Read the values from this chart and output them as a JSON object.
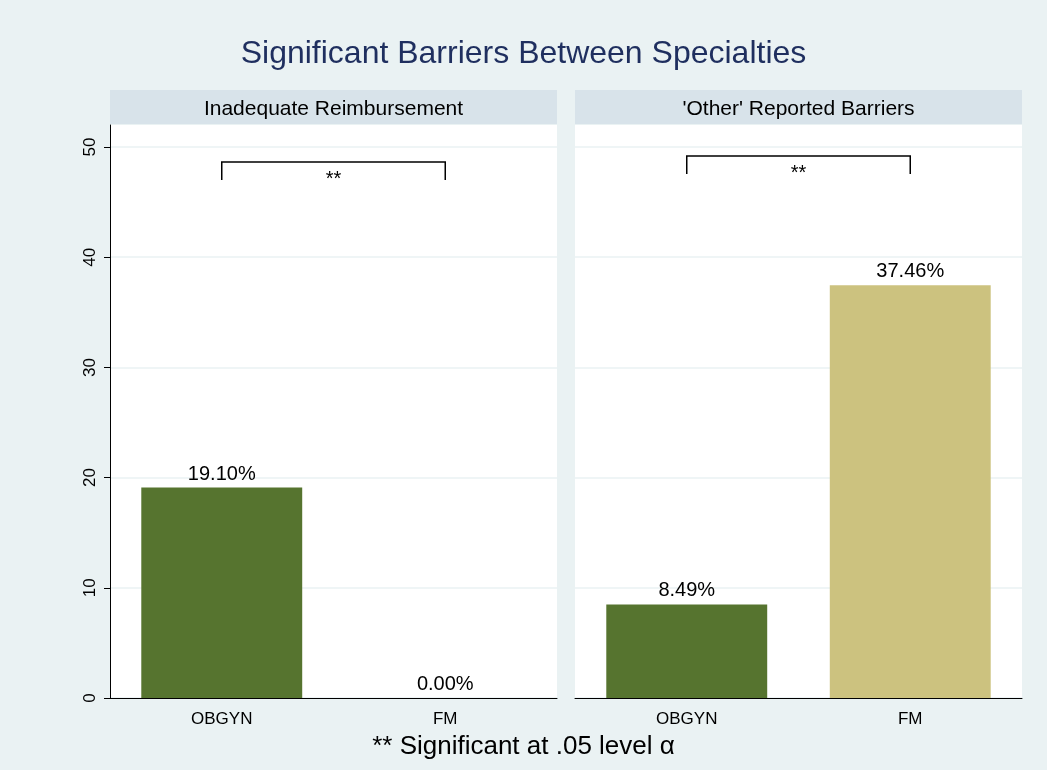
{
  "chart_data": [
    {
      "type": "bar",
      "title": "Significant Barriers Between Specialties",
      "subtitle": "Inadequate Reimbursement",
      "categories": [
        "OBGYN",
        "FM"
      ],
      "values": [
        19.1,
        0
      ],
      "colors": [
        "#56742f",
        "#ccc27f"
      ],
      "value_labels": [
        "19.10%",
        "0.00%"
      ],
      "ylim": [
        0,
        52
      ],
      "yticks": [
        0,
        10,
        20,
        30,
        40,
        50
      ],
      "grid": "y",
      "annotations": [
        "**",
        "** Significant at .05 level α"
      ]
    },
    {
      "type": "bar",
      "subtitle": "'Other' Reported Barriers",
      "categories": [
        "OBGYN",
        "FM"
      ],
      "values": [
        8.49,
        37.46
      ],
      "colors": [
        "#56742f",
        "#ccc27f"
      ],
      "value_labels": [
        "8.49%",
        "37.46%"
      ],
      "ylim": [
        0,
        52
      ],
      "yticks": [
        0,
        10,
        20,
        30,
        40,
        50
      ],
      "grid": "y",
      "tick_labels": "x",
      "annotations": [
        "**"
      ]
    }
  ]
}
